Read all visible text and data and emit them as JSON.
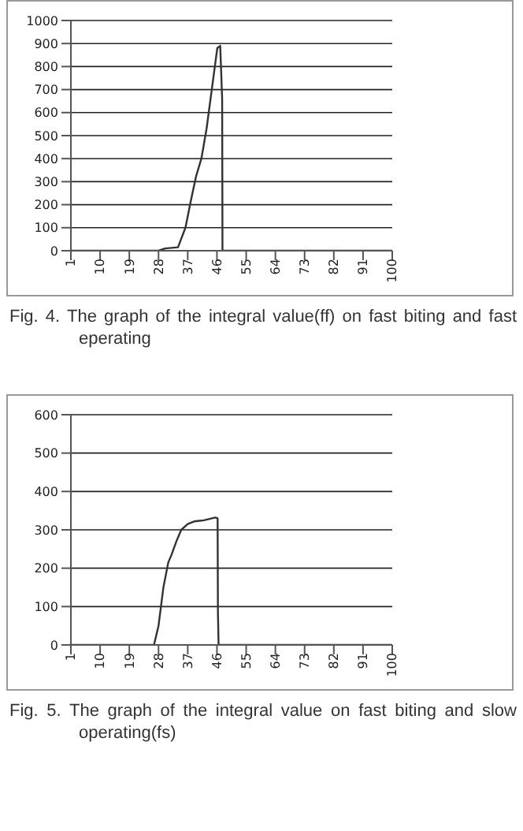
{
  "chart_data": [
    {
      "type": "line",
      "annotations": [
        "Fig.  4.  The  graph  of  the  integral  value(ff)  on  fast biting and fast eperating"
      ],
      "series": [
        {
          "color": "#333333",
          "x": [
            1,
            28,
            30,
            34,
            36.3,
            38,
            39.6,
            41.2,
            42.8,
            44.5,
            46.1,
            47,
            47.6,
            47.7,
            100
          ],
          "values": [
            0,
            0,
            10,
            15,
            100,
            220,
            325,
            400,
            530,
            710,
            880,
            890,
            660,
            0,
            0
          ]
        }
      ],
      "xlim": [
        1,
        100
      ],
      "xticks": [
        1,
        10,
        19,
        28,
        37,
        46,
        55,
        64,
        73,
        82,
        91,
        100
      ],
      "ylim": [
        0,
        1000
      ],
      "yticks": [
        0,
        100,
        200,
        300,
        400,
        500,
        600,
        700,
        800,
        900,
        1000
      ],
      "grid": "y",
      "marker": "none",
      "line_style": "solid"
    },
    {
      "type": "line",
      "annotations": [
        "Fig.  5.  The  graph  of  the  integral  value  on  fast  biting and slow operating(fs)"
      ],
      "series": [
        {
          "color": "#333333",
          "x": [
            1,
            26.6,
            28,
            29.5,
            31,
            32,
            33.5,
            35,
            37,
            39,
            42,
            44.5,
            45.5,
            46.2,
            46.3,
            46.5,
            100
          ],
          "values": [
            0,
            0,
            50,
            150,
            215,
            235,
            270,
            300,
            315,
            322,
            325,
            330,
            332,
            330,
            85,
            0,
            0
          ]
        }
      ],
      "xlim": [
        1,
        100
      ],
      "xticks": [
        1,
        10,
        19,
        28,
        37,
        46,
        55,
        64,
        73,
        82,
        91,
        100
      ],
      "ylim": [
        0,
        600
      ],
      "yticks": [
        0,
        100,
        200,
        300,
        400,
        500,
        600
      ],
      "grid": "y",
      "marker": "none",
      "line_style": "solid"
    }
  ]
}
